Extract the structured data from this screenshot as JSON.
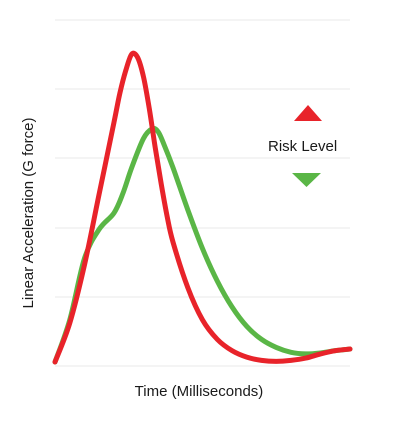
{
  "chart_data": {
    "type": "line",
    "title": "",
    "xlabel": "Time (Milliseconds)",
    "ylabel": "Linear Acceleration (G force)",
    "xlim": [
      0,
      100
    ],
    "ylim": [
      0,
      100
    ],
    "grid": true,
    "x_tick_labels_shown": false,
    "y_tick_labels_shown": false,
    "legend": {
      "label": "Risk Level",
      "placement": "right",
      "up_icon": "triangle-up-icon",
      "down_icon": "triangle-down-icon",
      "up_color": "#e8232a",
      "down_color": "#5ab646"
    },
    "series": [
      {
        "color": "#e8232a",
        "x": [
          0,
          5,
          10,
          15,
          20,
          22,
          24,
          26,
          28,
          30,
          32,
          34,
          36,
          38,
          40,
          45,
          50,
          55,
          60,
          65,
          70,
          75,
          80,
          85,
          90,
          95,
          100
        ],
        "y": [
          0,
          12,
          30,
          52,
          74,
          83,
          90,
          95,
          94,
          88,
          78,
          66,
          55,
          45,
          37,
          23,
          13,
          7,
          3.5,
          1.5,
          0.5,
          0.2,
          0.5,
          1.2,
          2.5,
          3.5,
          4
        ]
      },
      {
        "color": "#5ab646",
        "x": [
          0,
          5,
          10,
          15,
          20,
          23,
          26,
          30,
          33,
          35,
          37,
          40,
          45,
          50,
          55,
          60,
          65,
          70,
          75,
          80,
          85,
          90,
          95,
          100
        ],
        "y": [
          0,
          13,
          32,
          41,
          46,
          52,
          60,
          69,
          72,
          71,
          67,
          60,
          47,
          35,
          25,
          17,
          11,
          7,
          4.5,
          3,
          2.5,
          2.8,
          3.5,
          4
        ]
      }
    ]
  }
}
